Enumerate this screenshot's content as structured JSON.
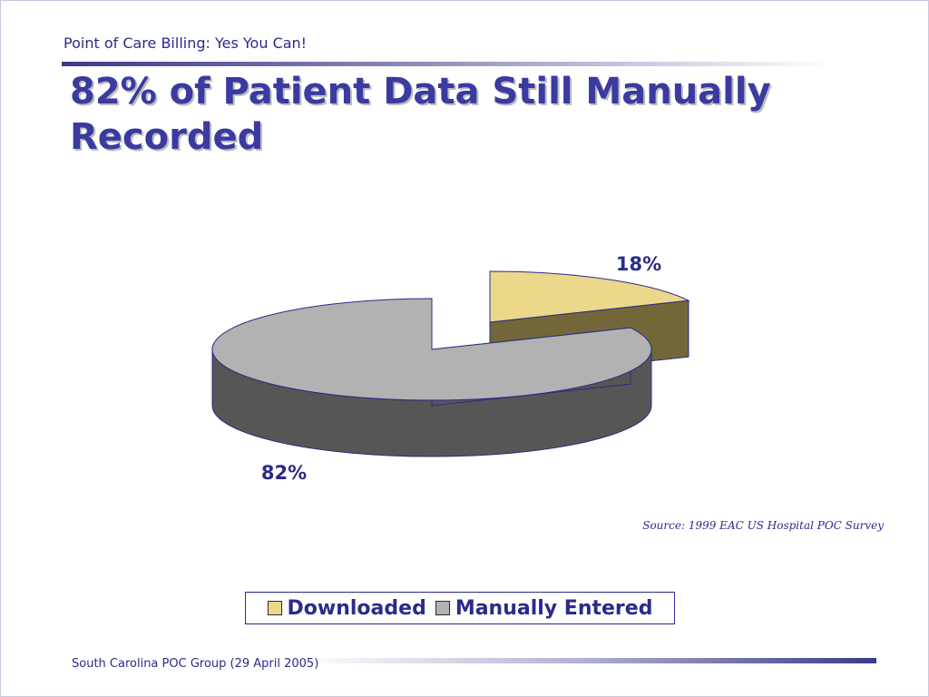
{
  "header": {
    "text": "Point of Care Billing:  Yes You Can!"
  },
  "title": "82% of Patient Data Still Manually Recorded",
  "source": "Source: 1999 EAC  US Hospital POC Survey",
  "footer": {
    "text": "South Carolina POC Group (29 April 2005)"
  },
  "chart_data": {
    "type": "pie",
    "style": "3d-exploded",
    "categories": [
      "Downloaded",
      "Manually Entered"
    ],
    "values": [
      18,
      82
    ],
    "data_labels": [
      "18%",
      "82%"
    ],
    "legend": {
      "placement": "bottom",
      "entries": [
        "Downloaded",
        "Manually Entered"
      ]
    },
    "colors": {
      "Downloaded": "#ecd88a",
      "Manually Entered": "#b2b2b2"
    },
    "side_colors": {
      "Downloaded": "#736739",
      "Manually Entered": "#565656"
    },
    "outline_color": "#2b2b8a"
  }
}
